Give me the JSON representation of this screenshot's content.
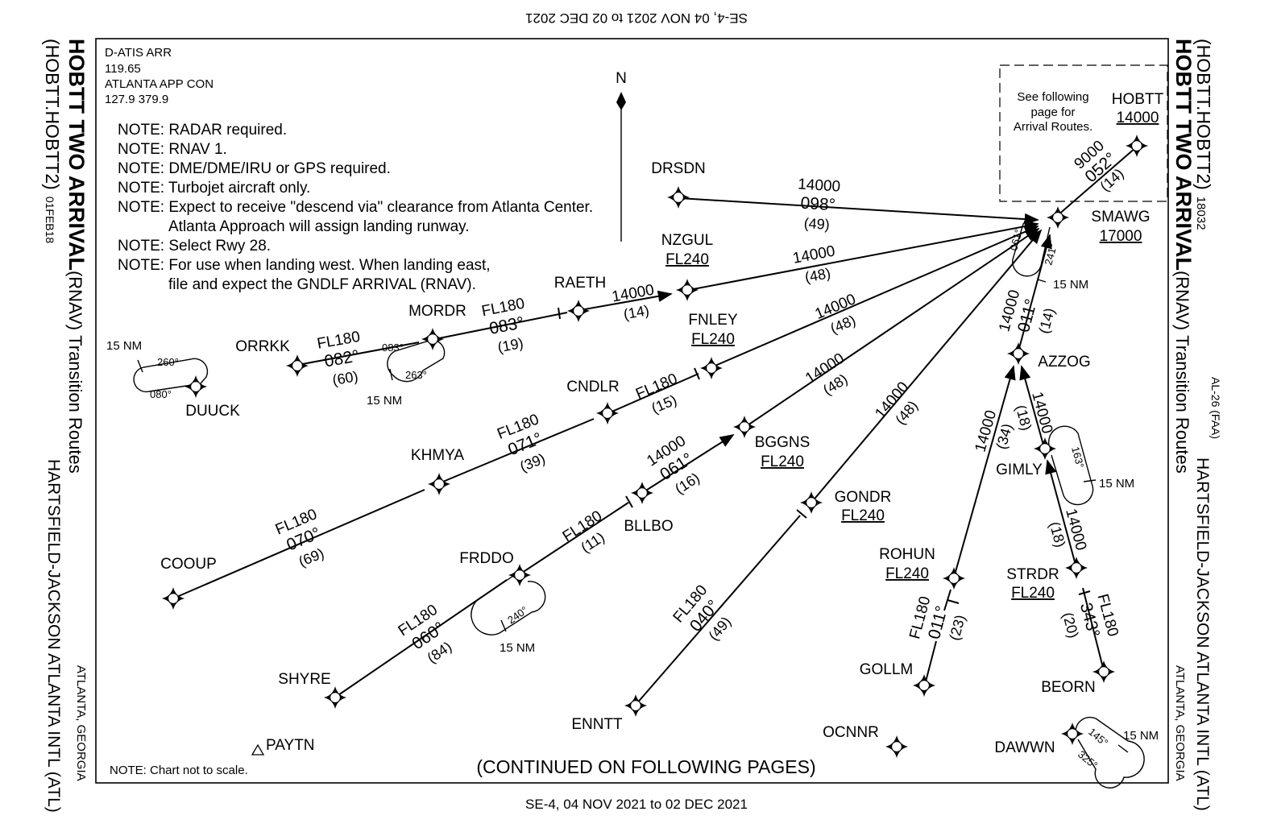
{
  "header": {
    "top_edition": "SE-4,  04 NOV 2021  to  02 DEC 2021",
    "bottom_edition": "SE-4,  04 NOV 2021  to  02 DEC 2021"
  },
  "left_margin": {
    "title": "HOBTT TWO ARRIVAL",
    "title_suffix": "(RNAV)",
    "subtitle": "Transition Routes",
    "code": "(HOBTT.HOBTT2)",
    "date": "01FEB18",
    "airport": "HARTSFIELD-JACKSON ATLANTA INTL  (ATL)",
    "city": "ATLANTA, GEORGIA"
  },
  "right_margin": {
    "code": "(HOBTT.HOBTT2)",
    "number": "18032",
    "title": "HOBTT TWO ARRIVAL",
    "title_suffix": "(RNAV)",
    "subtitle": "Transition Routes",
    "chart_id": "AL-26 (FAA)",
    "airport": "HARTSFIELD-JACKSON ATLANTA INTL  (ATL)",
    "city": "ATLANTA, GEORGIA"
  },
  "comms": {
    "line1": "D-ATIS ARR",
    "line2": "119.65",
    "line3": "ATLANTA APP CON",
    "line4": "127.9  379.9"
  },
  "notes": [
    "NOTE: RADAR required.",
    "NOTE: RNAV 1.",
    "NOTE: DME/DME/IRU or GPS required.",
    "NOTE: Turbojet aircraft only.",
    "NOTE: Expect to receive \"descend via\" clearance from Atlanta Center.",
    "Atlanta Approach will assign landing runway.",
    "NOTE: Select Rwy 28.",
    "NOTE: For use when landing west. When landing east,",
    "file and expect the GNDLF ARRIVAL (RNAV)."
  ],
  "north_label": "N",
  "inset": {
    "line1": "See following",
    "line2": "page for",
    "line3": "Arrival Routes."
  },
  "footer": {
    "scale_note": "NOTE:  Chart not to scale.",
    "continued": "(CONTINUED ON FOLLOWING PAGES)"
  },
  "fixes": {
    "hobtt": {
      "name": "HOBTT",
      "alt": "14000"
    },
    "smawg": {
      "name": "SMAWG",
      "alt": "17000"
    },
    "drsdn": {
      "name": "DRSDN"
    },
    "nzgul": {
      "name": "NZGUL",
      "alt": "FL240"
    },
    "raeth": {
      "name": "RAETH"
    },
    "mordr": {
      "name": "MORDR"
    },
    "orrkk": {
      "name": "ORRKK"
    },
    "duuck": {
      "name": "DUUCK"
    },
    "fnley": {
      "name": "FNLEY",
      "alt": "FL240"
    },
    "cndlr": {
      "name": "CNDLR"
    },
    "khmya": {
      "name": "KHMYA"
    },
    "cooup": {
      "name": "COOUP"
    },
    "bggns": {
      "name": "BGGNS",
      "alt": "FL240"
    },
    "bllbo": {
      "name": "BLLBO"
    },
    "frddo": {
      "name": "FRDDO"
    },
    "shyre": {
      "name": "SHYRE"
    },
    "payton": {
      "name": "PAYTN"
    },
    "gondr": {
      "name": "GONDR",
      "alt": "FL240"
    },
    "enntt": {
      "name": "ENNTT"
    },
    "azzog": {
      "name": "AZZOG"
    },
    "gimly": {
      "name": "GIMLY"
    },
    "rohun": {
      "name": "ROHUN",
      "alt": "FL240"
    },
    "gollm": {
      "name": "GOLLM"
    },
    "strdr": {
      "name": "STRDR",
      "alt": "FL240"
    },
    "beorn": {
      "name": "BEORN"
    },
    "ocnnr": {
      "name": "OCNNR"
    },
    "dawwn": {
      "name": "DAWWN"
    }
  },
  "legs": {
    "hobtt_smawg": {
      "alt": "9000",
      "crs": "052°",
      "dist": "(14)"
    },
    "drsdn_smawg": {
      "alt": "14000",
      "crs": "098°",
      "dist": "(49)"
    },
    "nzgul_smawg": {
      "alt": "14000",
      "dist": "(48)"
    },
    "raeth_nzgul": {
      "alt": "14000",
      "dist": "(14)"
    },
    "mordr_raeth": {
      "alt": "FL180",
      "crs": "083°",
      "dist": "(19)"
    },
    "orrkk_mordr": {
      "alt": "FL180",
      "crs": "082°",
      "dist": "(60)"
    },
    "fnley_smawg": {
      "alt": "14000",
      "dist": "(48)"
    },
    "cndlr_fnley": {
      "alt": "FL180",
      "dist": "(15)"
    },
    "khmya_cndlr": {
      "alt": "FL180",
      "crs": "071°",
      "dist": "(39)"
    },
    "cooup_khmya": {
      "alt": "FL180",
      "crs": "070°",
      "dist": "(69)"
    },
    "bggns_smawg": {
      "alt": "14000",
      "dist": "(48)"
    },
    "bllbo_bggns": {
      "alt": "14000",
      "crs": "061°",
      "dist": "(16)"
    },
    "frddo_bllbo": {
      "alt": "FL180",
      "dist": "(11)"
    },
    "shyre_frddo": {
      "alt": "FL180",
      "crs": "060°",
      "dist": "(84)"
    },
    "gondr_smawg": {
      "alt": "14000",
      "dist": "(48)"
    },
    "enntt_gondr": {
      "alt": "FL180",
      "crs": "040°",
      "dist": "(49)"
    },
    "azzog_smawg": {
      "alt": "14000",
      "crs": "011°",
      "dist": "(14)"
    },
    "rohun_azzog": {
      "alt": "14000",
      "dist": "(34)"
    },
    "gollm_rohun": {
      "alt": "FL180",
      "crs": "011°",
      "dist": "(23)"
    },
    "gimly_azzog": {
      "alt": "14000",
      "dist": "(18)"
    },
    "strdr_gimly": {
      "alt": "14000",
      "dist": "(18)"
    },
    "beorn_strdr": {
      "alt": "FL180",
      "crs": "343°",
      "dist": "(20)"
    }
  },
  "holds": {
    "smawg": {
      "in": "061°",
      "out": "241°",
      "leg": "15 NM"
    },
    "mordr": {
      "in": "083°",
      "out": "263°",
      "leg": "15 NM"
    },
    "duuck": {
      "in": "260°",
      "out": "080°",
      "leg": "15 NM"
    },
    "gimly": {
      "in": "163°",
      "leg": "15 NM"
    },
    "frddo": {
      "in": "240°",
      "leg": "15 NM"
    },
    "dawwn": {
      "in": "145°",
      "out": "325°",
      "leg": "15 NM"
    }
  }
}
